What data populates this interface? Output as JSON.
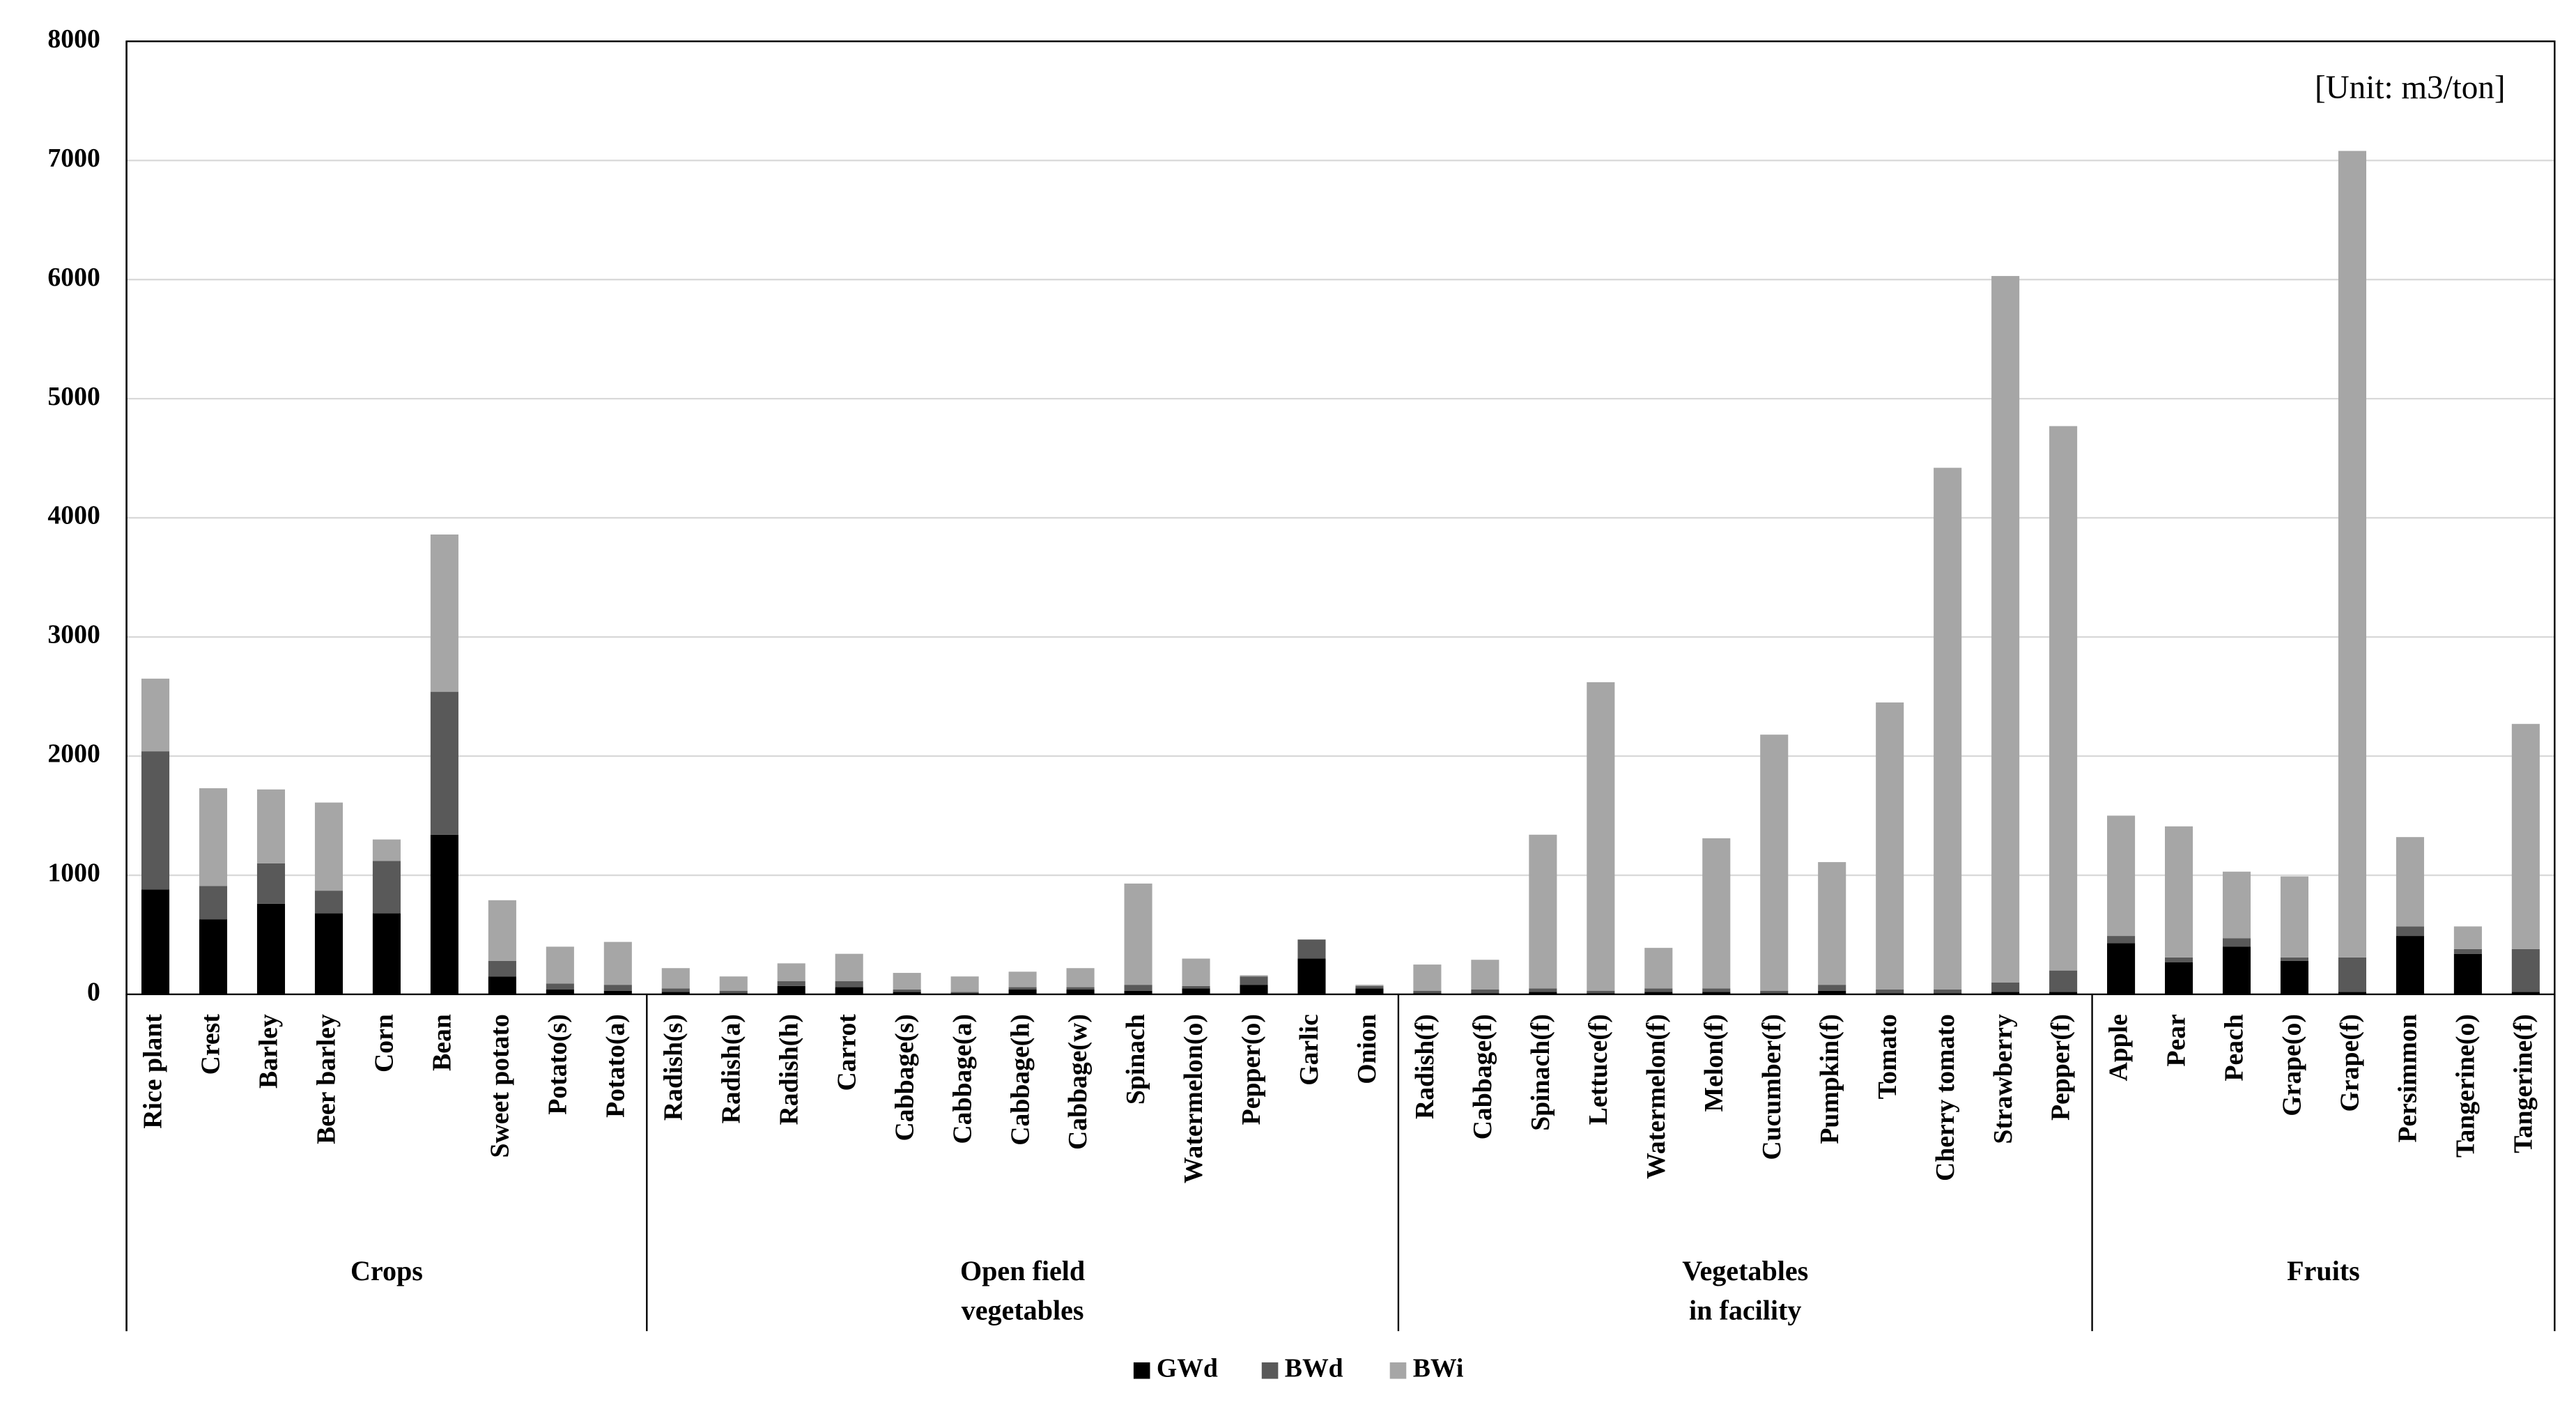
{
  "chart_data": {
    "type": "stacked-bar",
    "annotation": "[Unit: m3/ton]",
    "groups": [
      {
        "name": [
          "Crops"
        ],
        "categories": [
          "Rice plant",
          "Crest",
          "Barley",
          "Beer barley",
          "Corn",
          "Bean",
          "Sweet potato",
          "Potato(s)",
          "Potato(a)"
        ]
      },
      {
        "name": [
          "Open field",
          "vegetables"
        ],
        "categories": [
          "Radish(s)",
          "Radish(a)",
          "Radish(h)",
          "Carrot",
          "Cabbage(s)",
          "Cabbage(a)",
          "Cabbage(h)",
          "Cabbage(w)",
          "Spinach",
          "Watermelon(o)",
          "Pepper(o)",
          "Garlic",
          "Onion"
        ]
      },
      {
        "name": [
          "Vegetables",
          "in facility"
        ],
        "categories": [
          "Radish(f)",
          "Cabbage(f)",
          "Spinach(f)",
          "Lettuce(f)",
          "Watermelon(f)",
          "Melon(f)",
          "Cucumber(f)",
          "Pumpkin(f)",
          "Tomato",
          "Cherry tomato",
          "Strawberry",
          "Pepper(f)"
        ]
      },
      {
        "name": [
          "Fruits"
        ],
        "categories": [
          "Apple",
          "Pear",
          "Peach",
          "Grape(o)",
          "Grape(f)",
          "Persimmon",
          "Tangerine(o)",
          "Tangerine(f)"
        ]
      }
    ],
    "series": [
      {
        "name": "GWd",
        "color": "#000000",
        "values": [
          880,
          630,
          760,
          680,
          680,
          1340,
          150,
          40,
          30,
          20,
          10,
          70,
          60,
          20,
          10,
          40,
          40,
          30,
          50,
          80,
          300,
          50,
          10,
          10,
          20,
          10,
          20,
          20,
          10,
          30,
          10,
          10,
          20,
          20,
          430,
          270,
          400,
          280,
          20,
          490,
          340,
          20
        ]
      },
      {
        "name": "BWd",
        "color": "#595959",
        "values": [
          1160,
          280,
          340,
          190,
          440,
          1200,
          130,
          50,
          50,
          30,
          20,
          40,
          50,
          20,
          10,
          20,
          20,
          50,
          20,
          70,
          160,
          20,
          20,
          30,
          30,
          20,
          30,
          30,
          20,
          50,
          30,
          30,
          80,
          180,
          60,
          40,
          70,
          30,
          290,
          80,
          40,
          360
        ]
      },
      {
        "name": "BWi",
        "color": "#a6a6a6",
        "values": [
          610,
          820,
          620,
          740,
          180,
          1320,
          510,
          310,
          360,
          170,
          120,
          150,
          230,
          140,
          130,
          130,
          160,
          850,
          230,
          10,
          0,
          10,
          220,
          250,
          1290,
          2590,
          340,
          1260,
          2150,
          1030,
          2410,
          4380,
          5930,
          4570,
          1010,
          1100,
          560,
          680,
          6770,
          750,
          190,
          1890
        ]
      }
    ],
    "ylim": [
      0,
      8000
    ],
    "yticks": [
      0,
      1000,
      2000,
      3000,
      4000,
      5000,
      6000,
      7000,
      8000
    ],
    "grid": true,
    "legend": "bottom"
  }
}
